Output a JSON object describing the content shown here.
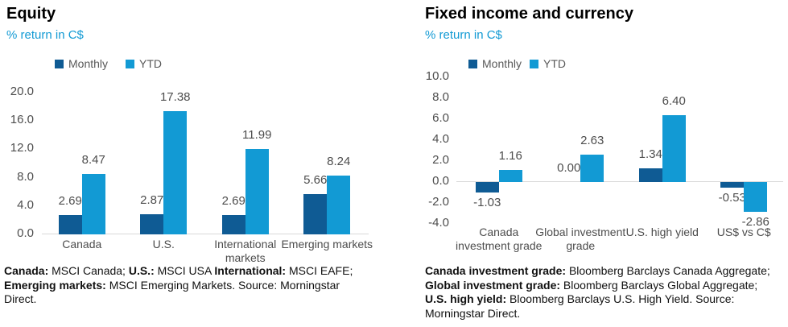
{
  "colors": {
    "monthly": "#0f5b94",
    "ytd": "#129ad4",
    "subtitle": "#129ad4",
    "label_gray": "#4d4d4d",
    "axis_line": "#d9d9d9"
  },
  "chart_data": [
    {
      "type": "bar",
      "title": "Equity",
      "subtitle": "% return in C$",
      "categories": [
        "Canada",
        "U.S.",
        "International markets",
        "Emerging markets"
      ],
      "category_display": [
        [
          "Canada"
        ],
        [
          "U.S."
        ],
        [
          "International",
          "markets"
        ],
        [
          "Emerging markets"
        ]
      ],
      "series": [
        {
          "name": "Monthly",
          "values": [
            2.69,
            2.87,
            2.69,
            5.66
          ]
        },
        {
          "name": "YTD",
          "values": [
            8.47,
            17.38,
            11.99,
            8.24
          ]
        }
      ],
      "xlabel": "",
      "ylabel": "% return in C$",
      "ylim": [
        0,
        20
      ],
      "ytick_step": 4,
      "grid": false,
      "legend_position": "top"
    },
    {
      "type": "bar",
      "title": "Fixed income and currency",
      "subtitle": "% return in C$",
      "categories": [
        "Canada investment grade",
        "Global investment grade",
        "U.S. high yield",
        "US$ vs C$"
      ],
      "category_display": [
        [
          "Canada",
          "investment grade"
        ],
        [
          "Global investment",
          "grade"
        ],
        [
          "U.S. high yield"
        ],
        [
          "US$ vs C$"
        ]
      ],
      "series": [
        {
          "name": "Monthly",
          "values": [
            -1.03,
            0.0,
            1.34,
            -0.53
          ]
        },
        {
          "name": "YTD",
          "values": [
            1.16,
            2.63,
            6.4,
            -2.86
          ]
        }
      ],
      "xlabel": "",
      "ylabel": "% return in C$",
      "ylim": [
        -4,
        10
      ],
      "ytick_step": 2,
      "grid": false,
      "legend_position": "top"
    }
  ],
  "footnotes": [
    [
      [
        {
          "text": "Canada:",
          "bold": true
        },
        {
          "text": " MSCI Canada; ",
          "bold": false
        },
        {
          "text": "U.S.:",
          "bold": true
        },
        {
          "text": " MSCI USA ",
          "bold": false
        },
        {
          "text": "International:",
          "bold": true
        },
        {
          "text": " MSCI EAFE;",
          "bold": false
        }
      ],
      [
        {
          "text": "Emerging markets:",
          "bold": true
        },
        {
          "text": " MSCI Emerging Markets. Source: Morningstar",
          "bold": false
        }
      ],
      [
        {
          "text": "Direct.",
          "bold": false
        }
      ]
    ],
    [
      [
        {
          "text": "Canada investment grade:",
          "bold": true
        },
        {
          "text": " Bloomberg Barclays Canada Aggregate;",
          "bold": false
        }
      ],
      [
        {
          "text": "Global investment grade:",
          "bold": true
        },
        {
          "text": " Bloomberg Barclays Global Aggregate;",
          "bold": false
        }
      ],
      [
        {
          "text": "U.S. high yield:",
          "bold": true
        },
        {
          "text": " Bloomberg Barclays U.S. High Yield. Source:",
          "bold": false
        }
      ],
      [
        {
          "text": "Morningstar Direct.",
          "bold": false
        }
      ]
    ]
  ]
}
